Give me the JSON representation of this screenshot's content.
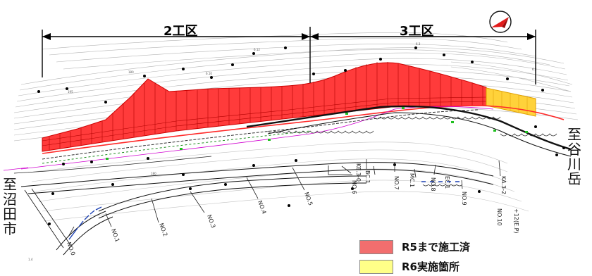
{
  "zones": [
    {
      "label": "2工区"
    },
    {
      "label": "3工区"
    }
  ],
  "destinations": {
    "right": "至谷川岳",
    "left": "至沼田市"
  },
  "legend": [
    {
      "label": "R5まで施工済",
      "color": "#f26e6e"
    },
    {
      "label": "R6実施箇所",
      "color": "#ffff88"
    }
  ],
  "stations": [
    "NO.0",
    "NO.1",
    "NO.2",
    "NO.3",
    "NO.4",
    "NO.5",
    "NO.6",
    "NO.7",
    "NO.8",
    "NO.9",
    "NO.10"
  ],
  "curve_points": [
    "BC.1",
    "MC.1",
    "EC.1",
    "KE.3-0",
    "KA.3-2",
    "+12(E.P)"
  ],
  "colors": {
    "completed_fill": "#ff3b3b",
    "completed_hatch": "#cc0000",
    "planned_fill": "#ffd23a",
    "north_arrow": "#e31b1b"
  },
  "icons": {
    "north_arrow": "north-arrow-icon"
  }
}
